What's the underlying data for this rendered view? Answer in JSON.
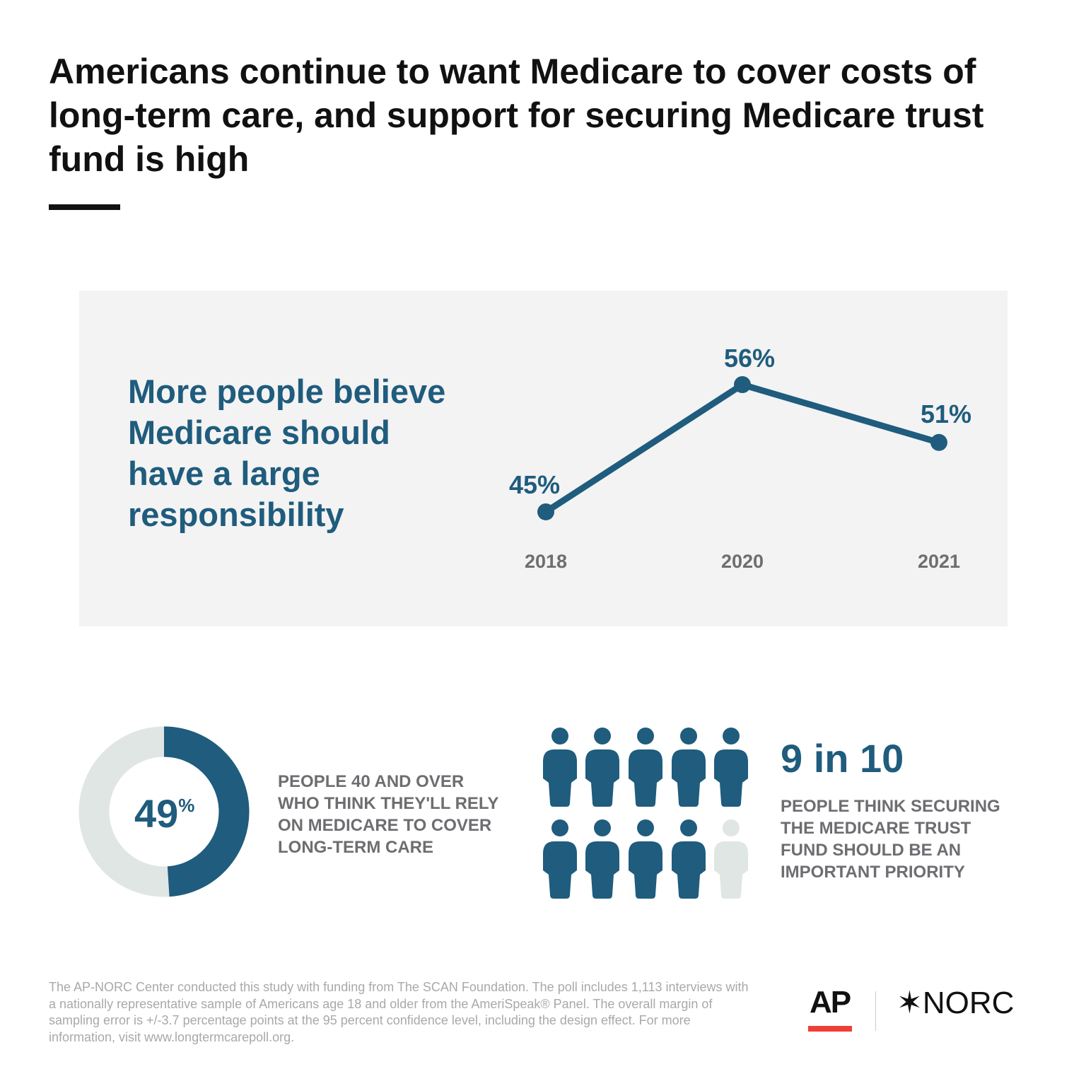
{
  "title": "Americans continue to want Medicare to cover costs of long-term care, and support for securing Medicare trust fund is high",
  "colors": {
    "accent": "#1f5c7d",
    "light": "#dfe6e3",
    "gray_text": "#6d6e71",
    "panel": "#f3f3f3",
    "ap_red": "#ef3e36"
  },
  "chart_data": [
    {
      "type": "line",
      "title": "More people believe Medicare should have a large responsibility",
      "categories": [
        "2018",
        "2020",
        "2021"
      ],
      "values": [
        45,
        56,
        51
      ],
      "labels": [
        "45%",
        "56%",
        "51%"
      ],
      "grid": false
    },
    {
      "type": "pie",
      "value": 49,
      "label": "49",
      "unit": "%",
      "caption": "PEOPLE 40 AND OVER WHO THINK THEY'LL RELY ON MEDICARE TO COVER LONG-TERM CARE"
    },
    {
      "type": "pictogram",
      "filled": 9,
      "total": 10,
      "label": "9 in 10",
      "caption": "PEOPLE THINK SECURING THE MEDICARE TRUST FUND SHOULD BE AN IMPORTANT PRIORITY"
    }
  ],
  "footer": "The AP-NORC Center conducted this study with funding from The SCAN Foundation. The poll includes 1,113 interviews with a nationally representative sample of Americans age 18 and older from the AmeriSpeak® Panel. The overall margin of sampling error is +/-3.7 percentage points at the 95 percent confidence level, including the design effect. For more information, visit www.longtermcarepoll.org.",
  "logos": {
    "ap": "AP",
    "norc": "✶NORC"
  }
}
